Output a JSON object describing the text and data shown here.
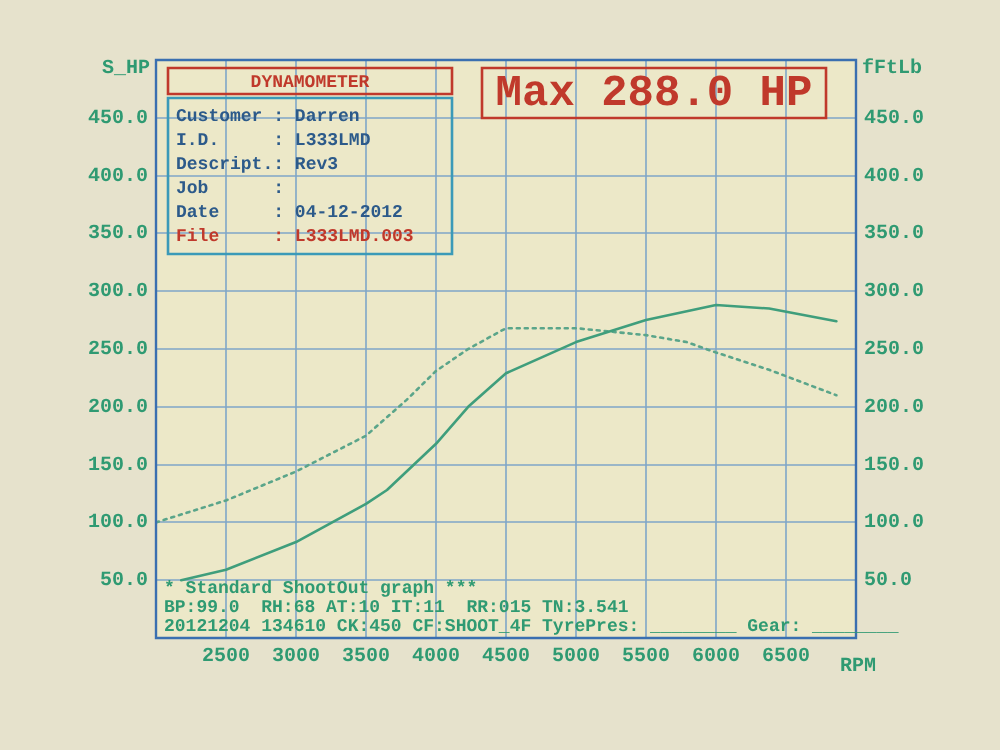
{
  "chart_data": {
    "type": "line",
    "title": "Max 288.0 HP",
    "ylabel": "S_HP",
    "y2label": "fFtLb",
    "xlabel": "RPM",
    "series": [
      {
        "color": "#3f9e7c",
        "line_style": "solid",
        "x": [
          2180,
          2500,
          3000,
          3500,
          3650,
          4000,
          4230,
          4500,
          5000,
          5500,
          6000,
          6380,
          6860
        ],
        "values": [
          50,
          59,
          83,
          116,
          128,
          168,
          200,
          229,
          256,
          275,
          288,
          285,
          274
        ]
      },
      {
        "color": "#5aa58a",
        "line_style": "dotted",
        "x": [
          2000,
          2500,
          3000,
          3500,
          3790,
          4000,
          4230,
          4500,
          5000,
          5500,
          5790,
          6000,
          6380,
          6860
        ],
        "values": [
          100,
          119,
          144,
          175,
          206,
          231,
          250,
          268,
          268,
          262,
          256,
          247,
          232,
          210
        ]
      }
    ],
    "xlim": [
      2000,
      7000
    ],
    "xticks": [
      {
        "value": 2000,
        "label": null
      },
      2500,
      3000,
      3500,
      4000,
      4500,
      5000,
      5500,
      6000,
      6500,
      {
        "value": 7000,
        "label": null
      }
    ],
    "ylim": [
      0,
      500
    ],
    "yticks": [
      {
        "value": 0,
        "label": null
      },
      {
        "value": 50,
        "label": "50.0"
      },
      {
        "value": 100,
        "label": "100.0"
      },
      {
        "value": 150,
        "label": "150.0"
      },
      {
        "value": 200,
        "label": "200.0"
      },
      {
        "value": 250,
        "label": "250.0"
      },
      {
        "value": 300,
        "label": "300.0"
      },
      {
        "value": 350,
        "label": "350.0"
      },
      {
        "value": 400,
        "label": "400.0"
      },
      {
        "value": 450,
        "label": "450.0"
      },
      {
        "value": 500,
        "label": null
      }
    ],
    "y2lim": [
      0,
      500
    ],
    "y2ticks": [
      {
        "value": 0,
        "label": null
      },
      {
        "value": 50,
        "label": "50.0"
      },
      {
        "value": 100,
        "label": "100.0"
      },
      {
        "value": 150,
        "label": "150.0"
      },
      {
        "value": 200,
        "label": "200.0"
      },
      {
        "value": 250,
        "label": "250.0"
      },
      {
        "value": 300,
        "label": "300.0"
      },
      {
        "value": 350,
        "label": "350.0"
      },
      {
        "value": 400,
        "label": "400.0"
      },
      {
        "value": 450,
        "label": "450.0"
      },
      {
        "value": 500,
        "label": null
      }
    ],
    "grid": true,
    "legend": false,
    "marker": "none",
    "annotations": [
      "DYNAMOMETER",
      "Customer : Darren",
      "I.D.     : L333LMD",
      "Descript.: Rev3",
      "Job      :",
      "Date     : 04-12-2012",
      "File     : L333LMD.003",
      "* Standard ShootOut graph ***",
      "BP:99.0  RH:68 AT:10 IT:11  RR:015 TN:3.541",
      "20121204 134610 CK:450 CF:SHOOT_4F TyrePres: ________ Gear: ________"
    ]
  }
}
